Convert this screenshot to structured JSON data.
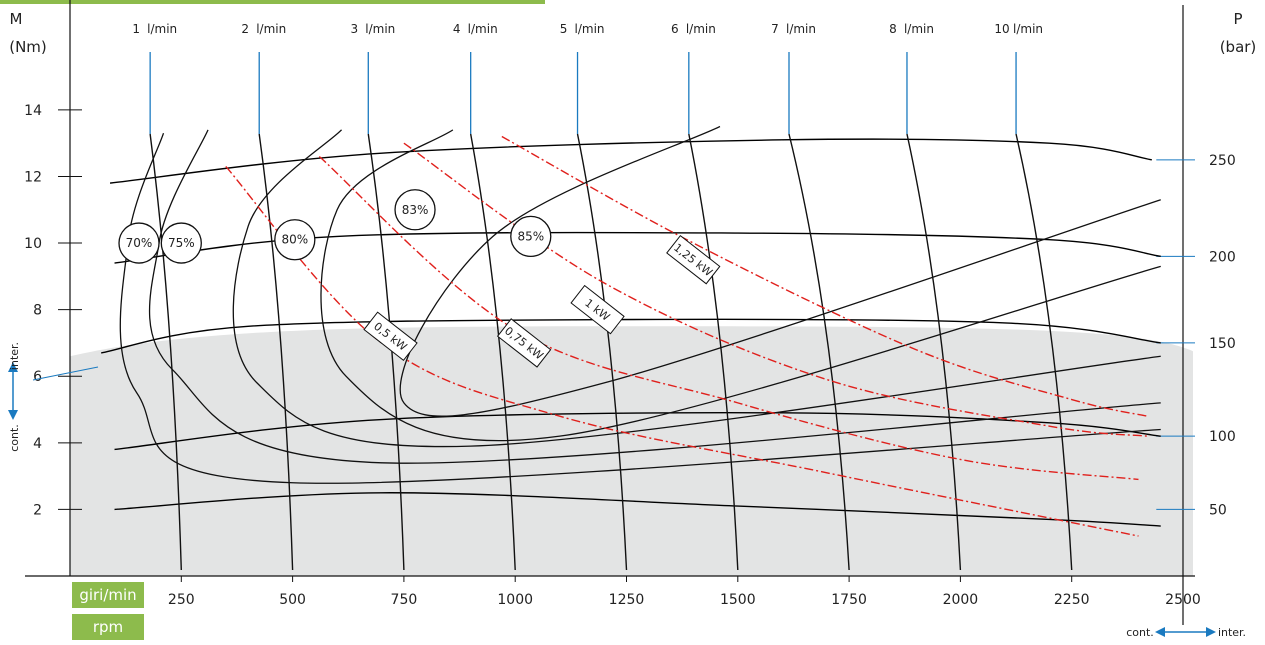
{
  "chart_data": {
    "type": "line",
    "title": "",
    "xlabel_units": [
      "giri/min",
      "rpm"
    ],
    "ylabel": "M",
    "ylabel_unit": "(Nm)",
    "y2label": "P",
    "y2label_unit": "(bar)",
    "xlim": [
      0,
      2500
    ],
    "ylim": [
      0,
      16
    ],
    "x_ticks": [
      250,
      500,
      750,
      1000,
      1250,
      1500,
      1750,
      2000,
      2250,
      2500
    ],
    "y_ticks": [
      2,
      4,
      6,
      8,
      10,
      12,
      14
    ],
    "y2_ticks": [
      {
        "label": "50",
        "torque": 2.0
      },
      {
        "label": "100",
        "torque": 4.2
      },
      {
        "label": "150",
        "torque": 7.0
      },
      {
        "label": "200",
        "torque": 9.6
      },
      {
        "label": "250",
        "torque": 12.5
      }
    ],
    "continuous_zone_max_torque": 7.5,
    "pressure_curves": [
      {
        "name": "50 bar",
        "points": [
          [
            100,
            2.0
          ],
          [
            700,
            2.5
          ],
          [
            1500,
            2.1
          ],
          [
            2200,
            1.7
          ],
          [
            2450,
            1.5
          ]
        ]
      },
      {
        "name": "100 bar",
        "points": [
          [
            100,
            3.8
          ],
          [
            700,
            4.7
          ],
          [
            1600,
            4.9
          ],
          [
            2200,
            4.6
          ],
          [
            2450,
            4.2
          ]
        ]
      },
      {
        "name": "150 bar",
        "points": [
          [
            70,
            6.7
          ],
          [
            400,
            7.5
          ],
          [
            1200,
            7.7
          ],
          [
            2100,
            7.6
          ],
          [
            2450,
            7.0
          ]
        ]
      },
      {
        "name": "200 bar",
        "points": [
          [
            100,
            9.4
          ],
          [
            600,
            10.2
          ],
          [
            1500,
            10.3
          ],
          [
            2200,
            10.1
          ],
          [
            2450,
            9.6
          ]
        ]
      },
      {
        "name": "250 bar",
        "points": [
          [
            90,
            11.8
          ],
          [
            700,
            12.7
          ],
          [
            1600,
            13.1
          ],
          [
            2200,
            13.0
          ],
          [
            2430,
            12.5
          ]
        ]
      }
    ],
    "flow_lines": [
      {
        "label": "1 l/min",
        "x_top": 180,
        "x_bottom": 250
      },
      {
        "label": "2 l/min",
        "x_top": 425,
        "x_bottom": 500
      },
      {
        "label": "3 l/min",
        "x_top": 670,
        "x_bottom": 750
      },
      {
        "label": "4 l/min",
        "x_top": 900,
        "x_bottom": 1000
      },
      {
        "label": "5 l/min",
        "x_top": 1140,
        "x_bottom": 1250
      },
      {
        "label": "6 l/min",
        "x_top": 1390,
        "x_bottom": 1500
      },
      {
        "label": "7 l/min",
        "x_top": 1615,
        "x_bottom": 1750
      },
      {
        "label": "8 l/min",
        "x_top": 1880,
        "x_bottom": 2000
      },
      {
        "label": "10 l/min",
        "x_top": 2125,
        "x_bottom": 2250
      }
    ],
    "efficiency_labels": [
      {
        "label": "70%",
        "x": 155,
        "y": 10.0
      },
      {
        "label": "75%",
        "x": 250,
        "y": 10.0
      },
      {
        "label": "80%",
        "x": 505,
        "y": 10.1
      },
      {
        "label": "83%",
        "x": 775,
        "y": 11.0
      },
      {
        "label": "85%",
        "x": 1035,
        "y": 10.2
      }
    ],
    "power_curves": [
      {
        "label": "0,5 kW",
        "points": [
          [
            350,
            12.3
          ],
          [
            700,
            7.0
          ],
          [
            1100,
            4.8
          ],
          [
            1700,
            3.1
          ],
          [
            2400,
            1.2
          ]
        ]
      },
      {
        "label": "0,75 kW",
        "points": [
          [
            560,
            12.6
          ],
          [
            1000,
            7.4
          ],
          [
            1500,
            5.2
          ],
          [
            2000,
            3.5
          ],
          [
            2400,
            2.9
          ]
        ]
      },
      {
        "label": "1 kW",
        "points": [
          [
            750,
            13.0
          ],
          [
            1200,
            8.8
          ],
          [
            1700,
            5.9
          ],
          [
            2200,
            4.5
          ],
          [
            2420,
            4.2
          ]
        ]
      },
      {
        "label": "1,25 kW",
        "points": [
          [
            970,
            13.2
          ],
          [
            1400,
            10.0
          ],
          [
            1900,
            6.8
          ],
          [
            2250,
            5.3
          ],
          [
            2420,
            4.8
          ]
        ]
      }
    ],
    "power_label_positions": [
      {
        "label": "0,5 kW",
        "x": 720,
        "y": 7.2
      },
      {
        "label": "0,75 kW",
        "x": 1020,
        "y": 7.0
      },
      {
        "label": "1 kW",
        "x": 1185,
        "y": 8.0
      },
      {
        "label": "1,25 kW",
        "x": 1400,
        "y": 9.5
      }
    ],
    "side_labels": {
      "inter": "inter.",
      "cont": "cont."
    },
    "colors": {
      "pressure": "#000000",
      "power": "#e0201c",
      "flow_marker": "#1a7ac0",
      "zone": "#e3e4e4",
      "badge": "#8dbb4c",
      "arrow": "#1a7ac0"
    }
  }
}
